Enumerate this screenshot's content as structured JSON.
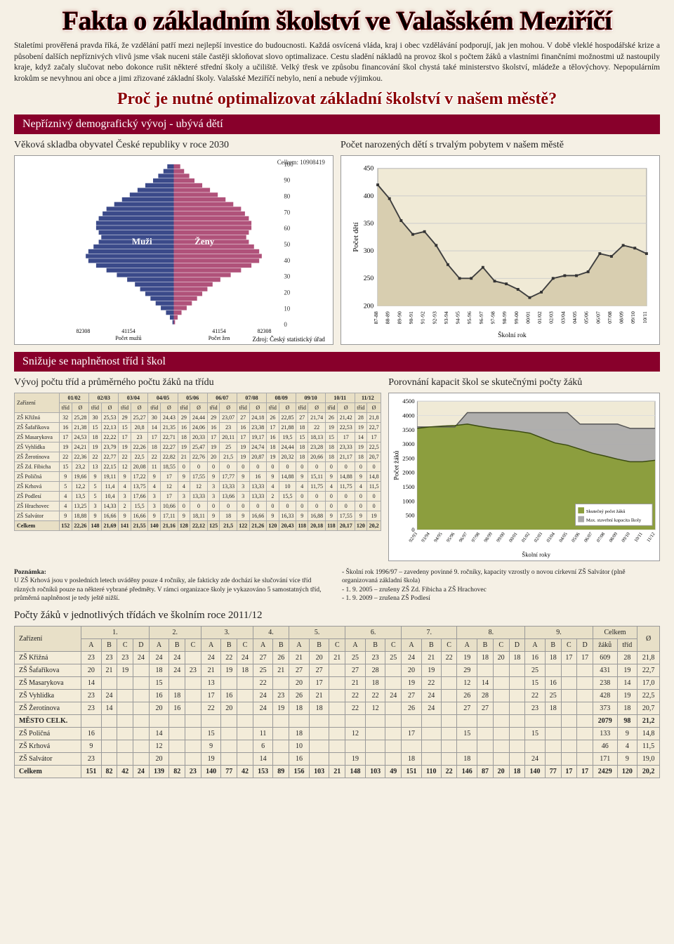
{
  "title": "Fakta o základním školství ve Valašském Meziříčí",
  "intro": "Staletími prověřená pravda říká, že vzdělání patří mezi nejlepší investice do budoucnosti. Každá osvícená vláda, kraj i obec vzdělávání podporují, jak jen mohou. V době vleklé hospodářské krize a působení dalších nepříznivých vlivů jsme však nuceni stále častěji skloňovat slovo optimalizace. Cestu sladění nákladů na provoz škol s počtem žáků a vlastními finančními možnostmi už nastoupily kraje, když začaly slučovat nebo dokonce rušit některé střední školy a učiliště. Velký třesk ve způsobu financování škol chystá také ministerstvo školství, mládeže a tělovýchovy. Nepopulárním krokům se nevyhnou ani obce a jimi zřizované základní školy. Valašské Meziříčí nebylo, není a nebude výjimkou.",
  "subheading": "Proč je nutné optimalizovat základní školství v našem městě?",
  "section1": {
    "bar": "Nepříznivý demografický vývoj - ubývá dětí",
    "left_subtitle": "Věková skladba obyvatel České republiky v roce 2030",
    "right_subtitle": "Počet narozených dětí s trvalým pobytem v našem městě",
    "pyramid": {
      "title_total": "Celkem: 10908419",
      "muzi_label": "Muži",
      "zeny_label": "Ženy",
      "y_ticks": [
        0,
        10,
        20,
        30,
        40,
        50,
        60,
        70,
        80,
        90,
        100
      ],
      "x_ticks_l": [
        "82308",
        "41154"
      ],
      "x_ticks_r": [
        "41154",
        "82308"
      ],
      "x_label_l": "Počet mužů",
      "x_label_r": "Počet žen",
      "source": "Zdroj: Český statistický úřad",
      "male_color": "#3b4a8a",
      "female_color": "#b0527a",
      "bars": [
        5,
        8,
        12,
        16,
        22,
        28,
        34,
        40,
        46,
        52,
        55,
        58,
        60,
        60,
        58,
        56,
        58,
        62,
        66,
        68,
        66,
        60,
        52,
        44,
        36,
        30,
        26,
        22,
        18,
        14,
        10,
        6,
        3,
        1
      ]
    },
    "births_chart": {
      "ylabel": "Počet dětí",
      "xlabel": "Školní rok",
      "ylim": [
        200,
        450
      ],
      "yticks": [
        200,
        250,
        300,
        350,
        400,
        450
      ],
      "x_labels": [
        "87-88",
        "88-89",
        "89-90",
        "90-91",
        "91-92",
        "92-93",
        "93-94",
        "94-95",
        "95-96",
        "96-97",
        "97-98",
        "98-99",
        "99-00",
        "00/01",
        "01/02",
        "02/03",
        "03/04",
        "04/05",
        "05/06",
        "06/07",
        "07/08",
        "08/09",
        "09/10",
        "10/11"
      ],
      "values": [
        420,
        395,
        355,
        330,
        335,
        310,
        275,
        250,
        250,
        270,
        245,
        240,
        230,
        215,
        225,
        250,
        255,
        255,
        262,
        295,
        290,
        310,
        305,
        295
      ],
      "line_color": "#404040",
      "fill_color": "#d8ceb0"
    }
  },
  "section2": {
    "bar": "Snižuje se naplněnost tříd i škol",
    "left_subtitle": "Vývoj počtu tříd a průměrného počtu žáků na třídu",
    "right_subtitle": "Porovnání kapacit škol se skutečnými počty žáků",
    "bigtable": {
      "zar_label": "Zařízení",
      "years": [
        "01/02",
        "02/03",
        "03/04",
        "04/05",
        "05/06",
        "06/07",
        "07/08",
        "08/09",
        "09/10",
        "10/11",
        "11/12"
      ],
      "subcols": [
        "tříd",
        "Ø"
      ],
      "rows": [
        {
          "name": "ZŠ Křižná",
          "cells": [
            "32",
            "25,28",
            "30",
            "25,53",
            "29",
            "25,27",
            "30",
            "24,43",
            "29",
            "24,44",
            "29",
            "23,07",
            "27",
            "24,18",
            "26",
            "22,85",
            "27",
            "21,74",
            "26",
            "21,42",
            "28",
            "21,8"
          ]
        },
        {
          "name": "ZŠ Šafaříkova",
          "cells": [
            "16",
            "21,38",
            "15",
            "22,13",
            "15",
            "20,8",
            "14",
            "21,35",
            "16",
            "24,06",
            "16",
            "23",
            "16",
            "23,38",
            "17",
            "21,88",
            "18",
            "22",
            "19",
            "22,53",
            "19",
            "22,7"
          ]
        },
        {
          "name": "ZŠ Masarykova",
          "cells": [
            "17",
            "24,53",
            "18",
            "22,22",
            "17",
            "23",
            "17",
            "22,71",
            "18",
            "20,33",
            "17",
            "20,11",
            "17",
            "19,17",
            "16",
            "19,5",
            "15",
            "18,13",
            "15",
            "17",
            "14",
            "17"
          ]
        },
        {
          "name": "ZŠ Vyhlídka",
          "cells": [
            "19",
            "24,21",
            "19",
            "23,79",
            "19",
            "22,26",
            "18",
            "22,27",
            "19",
            "25,47",
            "19",
            "25",
            "19",
            "24,74",
            "18",
            "24,44",
            "18",
            "23,28",
            "18",
            "23,33",
            "19",
            "22,5"
          ]
        },
        {
          "name": "ZŠ Žerotínova",
          "cells": [
            "22",
            "22,36",
            "22",
            "22,77",
            "22",
            "22,5",
            "22",
            "22,82",
            "21",
            "22,76",
            "20",
            "21,5",
            "19",
            "20,87",
            "19",
            "20,32",
            "18",
            "20,66",
            "18",
            "21,17",
            "18",
            "20,7"
          ]
        },
        {
          "name": "ZŠ Zd. Fibicha",
          "cells": [
            "15",
            "23,2",
            "13",
            "22,15",
            "12",
            "20,08",
            "11",
            "18,55",
            "0",
            "0",
            "0",
            "0",
            "0",
            "0",
            "0",
            "0",
            "0",
            "0",
            "0",
            "0",
            "0",
            "0"
          ]
        },
        {
          "name": "ZŠ Poličná",
          "cells": [
            "9",
            "19,66",
            "9",
            "19,11",
            "9",
            "17,22",
            "9",
            "17",
            "9",
            "17,55",
            "9",
            "17,77",
            "9",
            "16",
            "9",
            "14,88",
            "9",
            "15,11",
            "9",
            "14,88",
            "9",
            "14,8"
          ]
        },
        {
          "name": "ZŠ Krhová",
          "cells": [
            "5",
            "12,2",
            "5",
            "11,4",
            "4",
            "13,75",
            "4",
            "12",
            "4",
            "12",
            "3",
            "13,33",
            "3",
            "13,33",
            "4",
            "10",
            "4",
            "11,75",
            "4",
            "11,75",
            "4",
            "11,5"
          ]
        },
        {
          "name": "ZŠ Podlesí",
          "cells": [
            "4",
            "13,5",
            "5",
            "10,4",
            "3",
            "17,66",
            "3",
            "17",
            "3",
            "13,33",
            "3",
            "13,66",
            "3",
            "13,33",
            "2",
            "15,5",
            "0",
            "0",
            "0",
            "0",
            "0",
            "0"
          ]
        },
        {
          "name": "ZŠ Hrachovec",
          "cells": [
            "4",
            "13,25",
            "3",
            "14,33",
            "2",
            "15,5",
            "3",
            "10,66",
            "0",
            "0",
            "0",
            "0",
            "0",
            "0",
            "0",
            "0",
            "0",
            "0",
            "0",
            "0",
            "0",
            "0"
          ]
        },
        {
          "name": "ZŠ Salvátor",
          "cells": [
            "9",
            "18,88",
            "9",
            "16,66",
            "9",
            "16,66",
            "9",
            "17,11",
            "9",
            "18,11",
            "9",
            "18",
            "9",
            "16,66",
            "9",
            "16,33",
            "9",
            "16,88",
            "9",
            "17,55",
            "9",
            "19"
          ]
        }
      ],
      "total": {
        "name": "Celkem",
        "cells": [
          "152",
          "22,26",
          "148",
          "21,69",
          "141",
          "21,55",
          "140",
          "21,16",
          "128",
          "22,12",
          "125",
          "21,5",
          "122",
          "21,26",
          "120",
          "20,43",
          "118",
          "20,18",
          "118",
          "20,17",
          "120",
          "20,2"
        ]
      }
    },
    "capacity_chart": {
      "ylabel": "Počet žáků",
      "xlabel": "Školní roky",
      "ylim": [
        0,
        4500
      ],
      "yticks": [
        0,
        500,
        1000,
        1500,
        2000,
        2500,
        3000,
        3500,
        4000,
        4500
      ],
      "x_labels": [
        "92/93",
        "93/94",
        "94/95",
        "95/96",
        "96/97",
        "97/98",
        "98/99",
        "99/00",
        "00/01",
        "01/02",
        "02/03",
        "03/04",
        "04/05",
        "05/06",
        "06/07",
        "07/08",
        "08/09",
        "09/10",
        "10/11",
        "11/12"
      ],
      "capacity": [
        3600,
        3600,
        3600,
        3600,
        4100,
        4100,
        4100,
        4100,
        4100,
        4100,
        4100,
        4100,
        4100,
        3700,
        3700,
        3700,
        3700,
        3550,
        3550,
        3550
      ],
      "actual": [
        3550,
        3600,
        3630,
        3650,
        3700,
        3620,
        3550,
        3500,
        3450,
        3380,
        3210,
        3040,
        2960,
        2820,
        2680,
        2580,
        2470,
        2380,
        2380,
        2430
      ],
      "cap_color": "#a8a8a8",
      "act_color": "#8c9e3e",
      "legend": [
        "Skutečný počet žáků",
        "Max. stavební kapacita školy"
      ]
    },
    "note_left_title": "Poznámka:",
    "note_left": "U ZŠ Krhová jsou v posledních letech uváděny pouze 4 ročníky, ale fakticky zde dochází ke slučování více tříd různých ročníků pouze na některé vybrané předměty. V rámci organizace školy je vykazováno 5 samostatných tříd, průměrná naplněnost je tedy ještě nižší.",
    "note_right": "- Školní rok 1996/97 – zavedeny povinné 9. ročníky, kapacity vzrostly o novou církevní ZŠ Salvátor (plně organizovaná základní škola)\n- 1. 9. 2005 – zrušeny ZŠ Zd. Fibicha a ZŠ Hrachovec\n- 1. 9. 2009 – zrušena ZŠ Podlesí"
  },
  "section3": {
    "title": "Počty žáků v jednotlivých třídách ve školním roce 2011/12",
    "zar_label": "Zařízení",
    "grades": [
      "1.",
      "2.",
      "3.",
      "4.",
      "5.",
      "6.",
      "7.",
      "8.",
      "9."
    ],
    "sub": {
      "1": [
        "A",
        "B",
        "C",
        "D"
      ],
      "2": [
        "A",
        "B",
        "C"
      ],
      "3": [
        "A",
        "B",
        "C"
      ],
      "4": [
        "A",
        "B"
      ],
      "5": [
        "A",
        "B",
        "C"
      ],
      "6": [
        "A",
        "B",
        "C"
      ],
      "7": [
        "A",
        "B",
        "C"
      ],
      "8": [
        "A",
        "B",
        "C",
        "D"
      ],
      "9": [
        "A",
        "B",
        "C",
        "D"
      ]
    },
    "sum_cols": [
      "Celkem",
      "Ø"
    ],
    "sum_sub": [
      "žáků",
      "tříd"
    ],
    "rows": [
      {
        "n": "ZŠ Křižná",
        "c": [
          "23",
          "23",
          "23",
          "24",
          "24",
          "24",
          "",
          "24",
          "22",
          "24",
          "27",
          "26",
          "21",
          "20",
          "21",
          "25",
          "23",
          "25",
          "24",
          "21",
          "22",
          "19",
          "18",
          "20",
          "18",
          "16",
          "18",
          "17",
          "17",
          "609",
          "28",
          "21,8"
        ]
      },
      {
        "n": "ZŠ Šafaříkova",
        "c": [
          "20",
          "21",
          "19",
          "",
          "18",
          "24",
          "23",
          "21",
          "19",
          "18",
          "25",
          "21",
          "27",
          "27",
          "",
          "27",
          "28",
          "",
          "20",
          "19",
          "",
          "29",
          "",
          "",
          "",
          "25",
          "",
          "",
          "",
          "431",
          "19",
          "22,7"
        ]
      },
      {
        "n": "ZŠ Masarykova",
        "c": [
          "14",
          "",
          "",
          "",
          "15",
          "",
          "",
          "13",
          "",
          "",
          "22",
          "",
          "20",
          "17",
          "",
          "21",
          "18",
          "",
          "19",
          "22",
          "",
          "12",
          "14",
          "",
          "",
          "15",
          "16",
          "",
          "",
          "238",
          "14",
          "17,0"
        ]
      },
      {
        "n": "ZŠ Vyhlídka",
        "c": [
          "23",
          "24",
          "",
          "",
          "16",
          "18",
          "",
          "17",
          "16",
          "",
          "24",
          "23",
          "26",
          "21",
          "",
          "22",
          "22",
          "24",
          "27",
          "24",
          "",
          "26",
          "28",
          "",
          "",
          "22",
          "25",
          "",
          "",
          "428",
          "19",
          "22,5"
        ]
      },
      {
        "n": "ZŠ Žerotínova",
        "c": [
          "23",
          "14",
          "",
          "",
          "20",
          "16",
          "",
          "22",
          "20",
          "",
          "24",
          "19",
          "18",
          "18",
          "",
          "22",
          "12",
          "",
          "26",
          "24",
          "",
          "27",
          "27",
          "",
          "",
          "23",
          "18",
          "",
          "",
          "373",
          "18",
          "20,7"
        ]
      },
      {
        "n": "MĚSTO CELK.",
        "c": [
          "",
          "",
          "",
          "",
          "",
          "",
          "",
          "",
          "",
          "",
          "",
          "",
          "",
          "",
          "",
          "",
          "",
          "",
          "",
          "",
          "",
          "",
          "",
          "",
          "",
          "",
          "",
          "",
          "",
          "2079",
          "98",
          "21,2"
        ],
        "bold": true
      },
      {
        "n": "ZŠ Poličná",
        "c": [
          "16",
          "",
          "",
          "",
          "14",
          "",
          "",
          "15",
          "",
          "",
          "11",
          "",
          "18",
          "",
          "",
          "12",
          "",
          "",
          "17",
          "",
          "",
          "15",
          "",
          "",
          "",
          "15",
          "",
          "",
          "",
          "133",
          "9",
          "14,8"
        ]
      },
      {
        "n": "ZŠ Krhová",
        "c": [
          "9",
          "",
          "",
          "",
          "12",
          "",
          "",
          "9",
          "",
          "",
          "6",
          "",
          "10",
          "",
          "",
          "",
          "",
          "",
          "",
          "",
          "",
          "",
          "",
          "",
          "",
          "",
          "",
          "",
          "",
          "46",
          "4",
          "11,5"
        ]
      },
      {
        "n": "ZŠ Salvátor",
        "c": [
          "23",
          "",
          "",
          "",
          "20",
          "",
          "",
          "19",
          "",
          "",
          "14",
          "",
          "16",
          "",
          "",
          "19",
          "",
          "",
          "18",
          "",
          "",
          "18",
          "",
          "",
          "",
          "24",
          "",
          "",
          "",
          "171",
          "9",
          "19,0"
        ]
      },
      {
        "n": "Celkem",
        "c": [
          "151",
          "82",
          "42",
          "24",
          "139",
          "82",
          "23",
          "140",
          "77",
          "42",
          "153",
          "89",
          "156",
          "103",
          "21",
          "148",
          "103",
          "49",
          "151",
          "110",
          "22",
          "146",
          "87",
          "20",
          "18",
          "140",
          "77",
          "17",
          "17",
          "2429",
          "120",
          "20,2"
        ],
        "bold": true
      }
    ]
  }
}
